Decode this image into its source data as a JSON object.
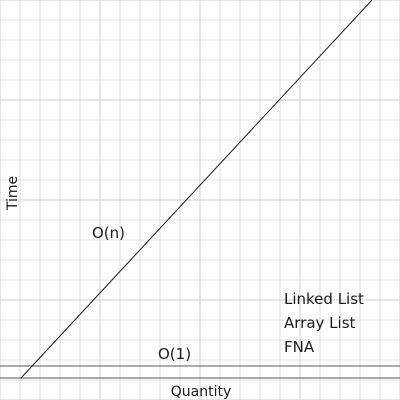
{
  "chart_data": {
    "type": "line",
    "title": "",
    "xlabel": "Quantity",
    "ylabel": "Time",
    "grid": true,
    "tick_labels_shown": false,
    "xlim": [
      0,
      100
    ],
    "ylim": [
      0,
      100
    ],
    "series": [
      {
        "name": "O(n)",
        "style": "linear",
        "x": [
          0,
          100
        ],
        "y": [
          0,
          100
        ]
      },
      {
        "name": "O(1)",
        "style": "constant",
        "x": [
          0,
          100
        ],
        "y": [
          0,
          0
        ]
      }
    ],
    "annotations": {
      "linear": "O(n)",
      "constant": "O(1)",
      "list": [
        "Linked List",
        "Array List",
        "FNA"
      ]
    },
    "colors": {
      "grid": "#d6d6d6",
      "lines": "#1a1a1a",
      "axes": "#555555",
      "background": "#ffffff"
    }
  }
}
